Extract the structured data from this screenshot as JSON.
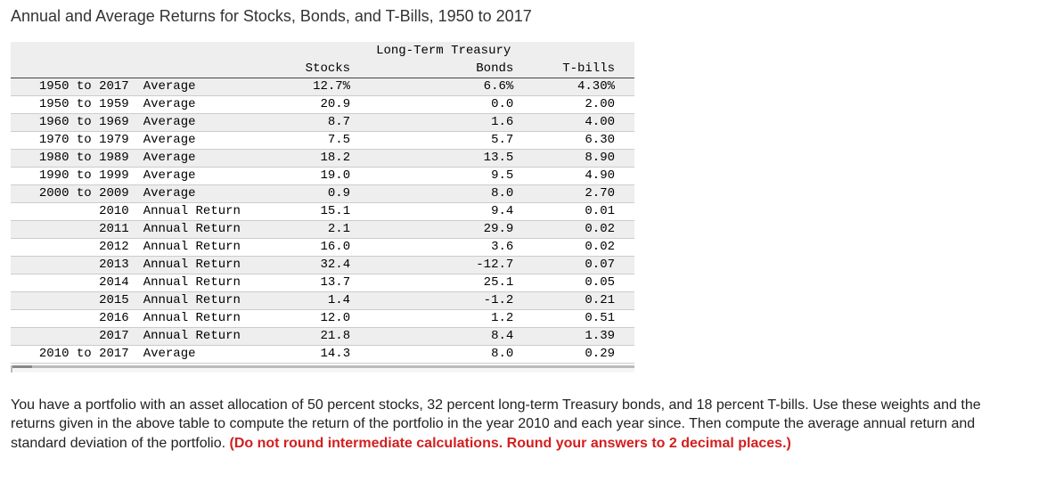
{
  "title": "Annual and Average Returns for Stocks, Bonds, and T-Bills, 1950 to 2017",
  "table": {
    "header_top": {
      "bonds_group": "Long-Term Treasury"
    },
    "header": {
      "period": "",
      "type": "",
      "stocks": "Stocks",
      "bonds": "Bonds",
      "tbills": "T-bills"
    },
    "rows": [
      {
        "period": "1950 to 2017",
        "type": "Average",
        "stocks": "12.7%",
        "bonds": "6.6%",
        "tbills": "4.30%"
      },
      {
        "period": "1950 to 1959",
        "type": "Average",
        "stocks": "20.9",
        "bonds": "0.0",
        "tbills": "2.00"
      },
      {
        "period": "1960 to 1969",
        "type": "Average",
        "stocks": "8.7",
        "bonds": "1.6",
        "tbills": "4.00"
      },
      {
        "period": "1970 to 1979",
        "type": "Average",
        "stocks": "7.5",
        "bonds": "5.7",
        "tbills": "6.30"
      },
      {
        "period": "1980 to 1989",
        "type": "Average",
        "stocks": "18.2",
        "bonds": "13.5",
        "tbills": "8.90"
      },
      {
        "period": "1990 to 1999",
        "type": "Average",
        "stocks": "19.0",
        "bonds": "9.5",
        "tbills": "4.90"
      },
      {
        "period": "2000 to 2009",
        "type": "Average",
        "stocks": "0.9",
        "bonds": "8.0",
        "tbills": "2.70"
      },
      {
        "period": "2010",
        "type": "Annual Return",
        "stocks": "15.1",
        "bonds": "9.4",
        "tbills": "0.01"
      },
      {
        "period": "2011",
        "type": "Annual Return",
        "stocks": "2.1",
        "bonds": "29.9",
        "tbills": "0.02"
      },
      {
        "period": "2012",
        "type": "Annual Return",
        "stocks": "16.0",
        "bonds": "3.6",
        "tbills": "0.02"
      },
      {
        "period": "2013",
        "type": "Annual Return",
        "stocks": "32.4",
        "bonds": "-12.7",
        "tbills": "0.07"
      },
      {
        "period": "2014",
        "type": "Annual Return",
        "stocks": "13.7",
        "bonds": "25.1",
        "tbills": "0.05"
      },
      {
        "period": "2015",
        "type": "Annual Return",
        "stocks": "1.4",
        "bonds": "-1.2",
        "tbills": "0.21"
      },
      {
        "period": "2016",
        "type": "Annual Return",
        "stocks": "12.0",
        "bonds": "1.2",
        "tbills": "0.51"
      },
      {
        "period": "2017",
        "type": "Annual Return",
        "stocks": "21.8",
        "bonds": "8.4",
        "tbills": "1.39"
      },
      {
        "period": "2010 to 2017",
        "type": "Average",
        "stocks": "14.3",
        "bonds": "8.0",
        "tbills": "0.29"
      }
    ]
  },
  "question": {
    "body": "You have a portfolio with an asset allocation of 50 percent stocks, 32 percent long-term Treasury bonds, and 18 percent T-bills. Use these weights and the returns given in the above table to compute the return of the portfolio in the year 2010 and each year since. Then compute the average annual return and standard deviation of the portfolio. ",
    "warn": "(Do not round intermediate calculations. Round your answers to 2 decimal places.)"
  }
}
